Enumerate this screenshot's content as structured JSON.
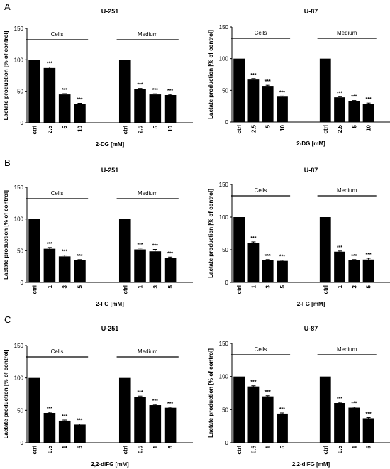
{
  "panel_letters": [
    "A",
    "B",
    "C"
  ],
  "group_labels": {
    "cells": "Cells",
    "medium": "Medium"
  },
  "significance": "***",
  "chart_data": [
    {
      "type": "bar",
      "title": "U-251",
      "xlabel": "2-DG [mM]",
      "ylabel": "Lactate production [% of control]",
      "ylim": [
        0,
        150
      ],
      "yticks": [
        0,
        50,
        100,
        150
      ],
      "groups": [
        {
          "name": "Cells",
          "categories": [
            "ctrl",
            "2.5",
            "5",
            "10"
          ],
          "values": [
            100,
            87,
            45,
            30
          ],
          "errors": [
            0,
            1.5,
            1.2,
            1
          ],
          "sig": [
            "",
            "***",
            "***",
            "***"
          ]
        },
        {
          "name": "Medium",
          "categories": [
            "ctrl",
            "2.5",
            "5",
            "10"
          ],
          "values": [
            100,
            53,
            45,
            44
          ],
          "errors": [
            0,
            1.5,
            1,
            1
          ],
          "sig": [
            "",
            "***",
            "***",
            "***"
          ]
        }
      ]
    },
    {
      "type": "bar",
      "title": "U-87",
      "xlabel": "2-DG [mM]",
      "ylabel": "Lactate production [% of control]",
      "ylim": [
        0,
        150
      ],
      "yticks": [
        0,
        50,
        100,
        150
      ],
      "groups": [
        {
          "name": "Cells",
          "categories": [
            "ctrl",
            "2.5",
            "5",
            "10"
          ],
          "values": [
            100,
            67,
            57,
            40
          ],
          "errors": [
            0,
            1.5,
            1,
            1
          ],
          "sig": [
            "",
            "***",
            "***",
            "***"
          ]
        },
        {
          "name": "Medium",
          "categories": [
            "ctrl",
            "2.5",
            "5",
            "10"
          ],
          "values": [
            100,
            39,
            33,
            29
          ],
          "errors": [
            0,
            1,
            1,
            1
          ],
          "sig": [
            "",
            "***",
            "***",
            "***"
          ]
        }
      ]
    },
    {
      "type": "bar",
      "title": "U-251",
      "xlabel": "2-FG [mM]",
      "ylabel": "Lactate production [% of control]",
      "ylim": [
        0,
        150
      ],
      "yticks": [
        0,
        50,
        100,
        150
      ],
      "groups": [
        {
          "name": "Cells",
          "categories": [
            "ctrl",
            "1",
            "3",
            "5"
          ],
          "values": [
            100,
            53,
            41,
            35
          ],
          "errors": [
            0,
            2,
            2,
            1
          ],
          "sig": [
            "",
            "***",
            "***",
            "***"
          ]
        },
        {
          "name": "Medium",
          "categories": [
            "ctrl",
            "1",
            "3",
            "5"
          ],
          "values": [
            100,
            52,
            49,
            39
          ],
          "errors": [
            0,
            2,
            3,
            1
          ],
          "sig": [
            "",
            "***",
            "***",
            "***"
          ]
        }
      ]
    },
    {
      "type": "bar",
      "title": "U-87",
      "xlabel": "2-FG [mM]",
      "ylabel": "Lactate production [% of control]",
      "ylim": [
        0,
        150
      ],
      "yticks": [
        0,
        50,
        100,
        150
      ],
      "groups": [
        {
          "name": "Cells",
          "categories": [
            "ctrl",
            "1",
            "3",
            "5"
          ],
          "values": [
            100,
            60,
            34,
            33
          ],
          "errors": [
            0,
            2,
            1,
            1
          ],
          "sig": [
            "",
            "***",
            "***",
            "***"
          ]
        },
        {
          "name": "Medium",
          "categories": [
            "ctrl",
            "1",
            "3",
            "5"
          ],
          "values": [
            100,
            47,
            34,
            35
          ],
          "errors": [
            0,
            1,
            1,
            2
          ],
          "sig": [
            "",
            "***",
            "***",
            "***"
          ]
        }
      ]
    },
    {
      "type": "bar",
      "title": "U-251",
      "xlabel": "2,2-diFG [mM]",
      "ylabel": "Lactate production [% of control]",
      "ylim": [
        0,
        150
      ],
      "yticks": [
        0,
        50,
        100,
        150
      ],
      "groups": [
        {
          "name": "Cells",
          "categories": [
            "ctrl",
            "0.5",
            "1",
            "5"
          ],
          "values": [
            100,
            46,
            34,
            28
          ],
          "errors": [
            0,
            1,
            1,
            1
          ],
          "sig": [
            "",
            "***",
            "***",
            "***"
          ]
        },
        {
          "name": "Medium",
          "categories": [
            "ctrl",
            "0.5",
            "1",
            "5"
          ],
          "values": [
            100,
            71,
            58,
            54
          ],
          "errors": [
            0,
            1,
            1,
            1
          ],
          "sig": [
            "",
            "***",
            "***",
            "***"
          ]
        }
      ]
    },
    {
      "type": "bar",
      "title": "U-87",
      "xlabel": "2,2-diFG [mM]",
      "ylabel": "Lactate production [% of control]",
      "ylim": [
        0,
        150
      ],
      "yticks": [
        0,
        50,
        100,
        150
      ],
      "groups": [
        {
          "name": "Cells",
          "categories": [
            "ctrl",
            "0.5",
            "1",
            "5"
          ],
          "values": [
            100,
            85,
            70,
            44
          ],
          "errors": [
            0,
            1,
            1,
            1
          ],
          "sig": [
            "",
            "***",
            "***",
            "***"
          ]
        },
        {
          "name": "Medium",
          "categories": [
            "ctrl",
            "0.5",
            "1",
            "5"
          ],
          "values": [
            100,
            60,
            53,
            37
          ],
          "errors": [
            0,
            1,
            1,
            1
          ],
          "sig": [
            "",
            "***",
            "***",
            "***"
          ]
        }
      ]
    }
  ]
}
